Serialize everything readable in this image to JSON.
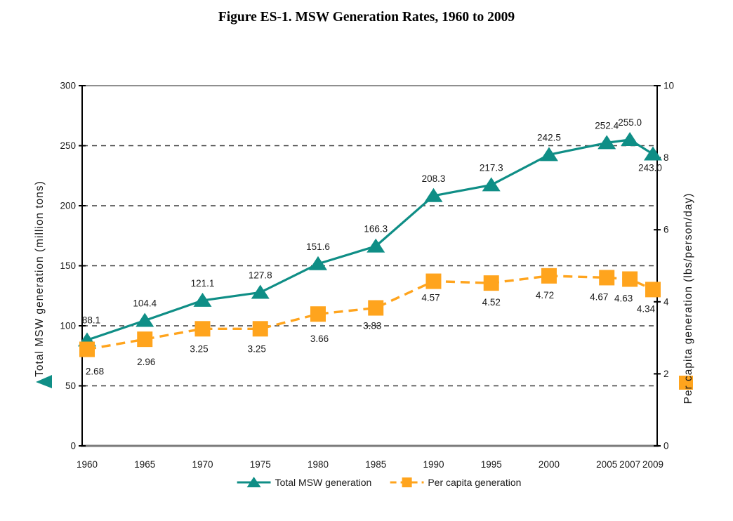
{
  "figure": {
    "title": "Figure ES-1. MSW Generation Rates, 1960 to 2009"
  },
  "colors": {
    "teal": "#0F8E86",
    "orange": "#FFA41D",
    "grid": "#3C3C3C",
    "axis_black": "#000000",
    "border_gray": "#8F8F8F",
    "bottom_axis_gray": "#7A7A7A",
    "text": "#1A1A1A"
  },
  "chart_data": {
    "type": "line",
    "title": "Figure ES-1. MSW Generation Rates, 1960 to 2009",
    "x": [
      1960,
      1965,
      1970,
      1975,
      1980,
      1985,
      1990,
      1995,
      2000,
      2005,
      2007,
      2009
    ],
    "x_tick_labels": [
      "1960",
      "1965",
      "1970",
      "1975",
      "1980",
      "1985",
      "1990",
      "1995",
      "2000",
      "2005",
      "2007",
      "2009"
    ],
    "series": [
      {
        "name": "Total MSW generation",
        "axis": "left",
        "marker": "triangle",
        "line_style": "solid",
        "values": [
          88.1,
          104.4,
          121.1,
          127.8,
          151.6,
          166.3,
          208.3,
          217.3,
          242.5,
          252.4,
          255.0,
          243.0
        ],
        "value_labels": [
          "88.1",
          "104.4",
          "121.1",
          "127.8",
          "151.6",
          "166.3",
          "208.3",
          "217.3",
          "242.5",
          "252.4",
          "255.0",
          "243.0"
        ]
      },
      {
        "name": "Per capita generation",
        "axis": "right",
        "marker": "square",
        "line_style": "dashed",
        "values": [
          2.68,
          2.96,
          3.25,
          3.25,
          3.66,
          3.83,
          4.57,
          4.52,
          4.72,
          4.67,
          4.63,
          4.34
        ],
        "value_labels": [
          "2.68",
          "2.96",
          "3.25",
          "3.25",
          "3.66",
          "3.83",
          "4.57",
          "4.52",
          "4.72",
          "4.67",
          "4.63",
          "4.34"
        ]
      }
    ],
    "left_axis": {
      "label": "Total MSW generation (million tons)",
      "min": 0,
      "max": 300,
      "ticks": [
        0,
        50,
        100,
        150,
        200,
        250,
        300
      ],
      "gridlines": [
        50,
        100,
        150,
        200,
        250
      ]
    },
    "right_axis": {
      "label": "Per capita generation (lbs/person/day)",
      "min": 0,
      "max": 10,
      "ticks": [
        0,
        2,
        4,
        6,
        8,
        10
      ]
    },
    "grid": "horizontal dashed lines at left-axis ticks 50-250, solid gray top border at 300",
    "legend": {
      "position": "bottom-center",
      "entries": [
        "Total MSW generation",
        "Per capita generation"
      ]
    }
  }
}
